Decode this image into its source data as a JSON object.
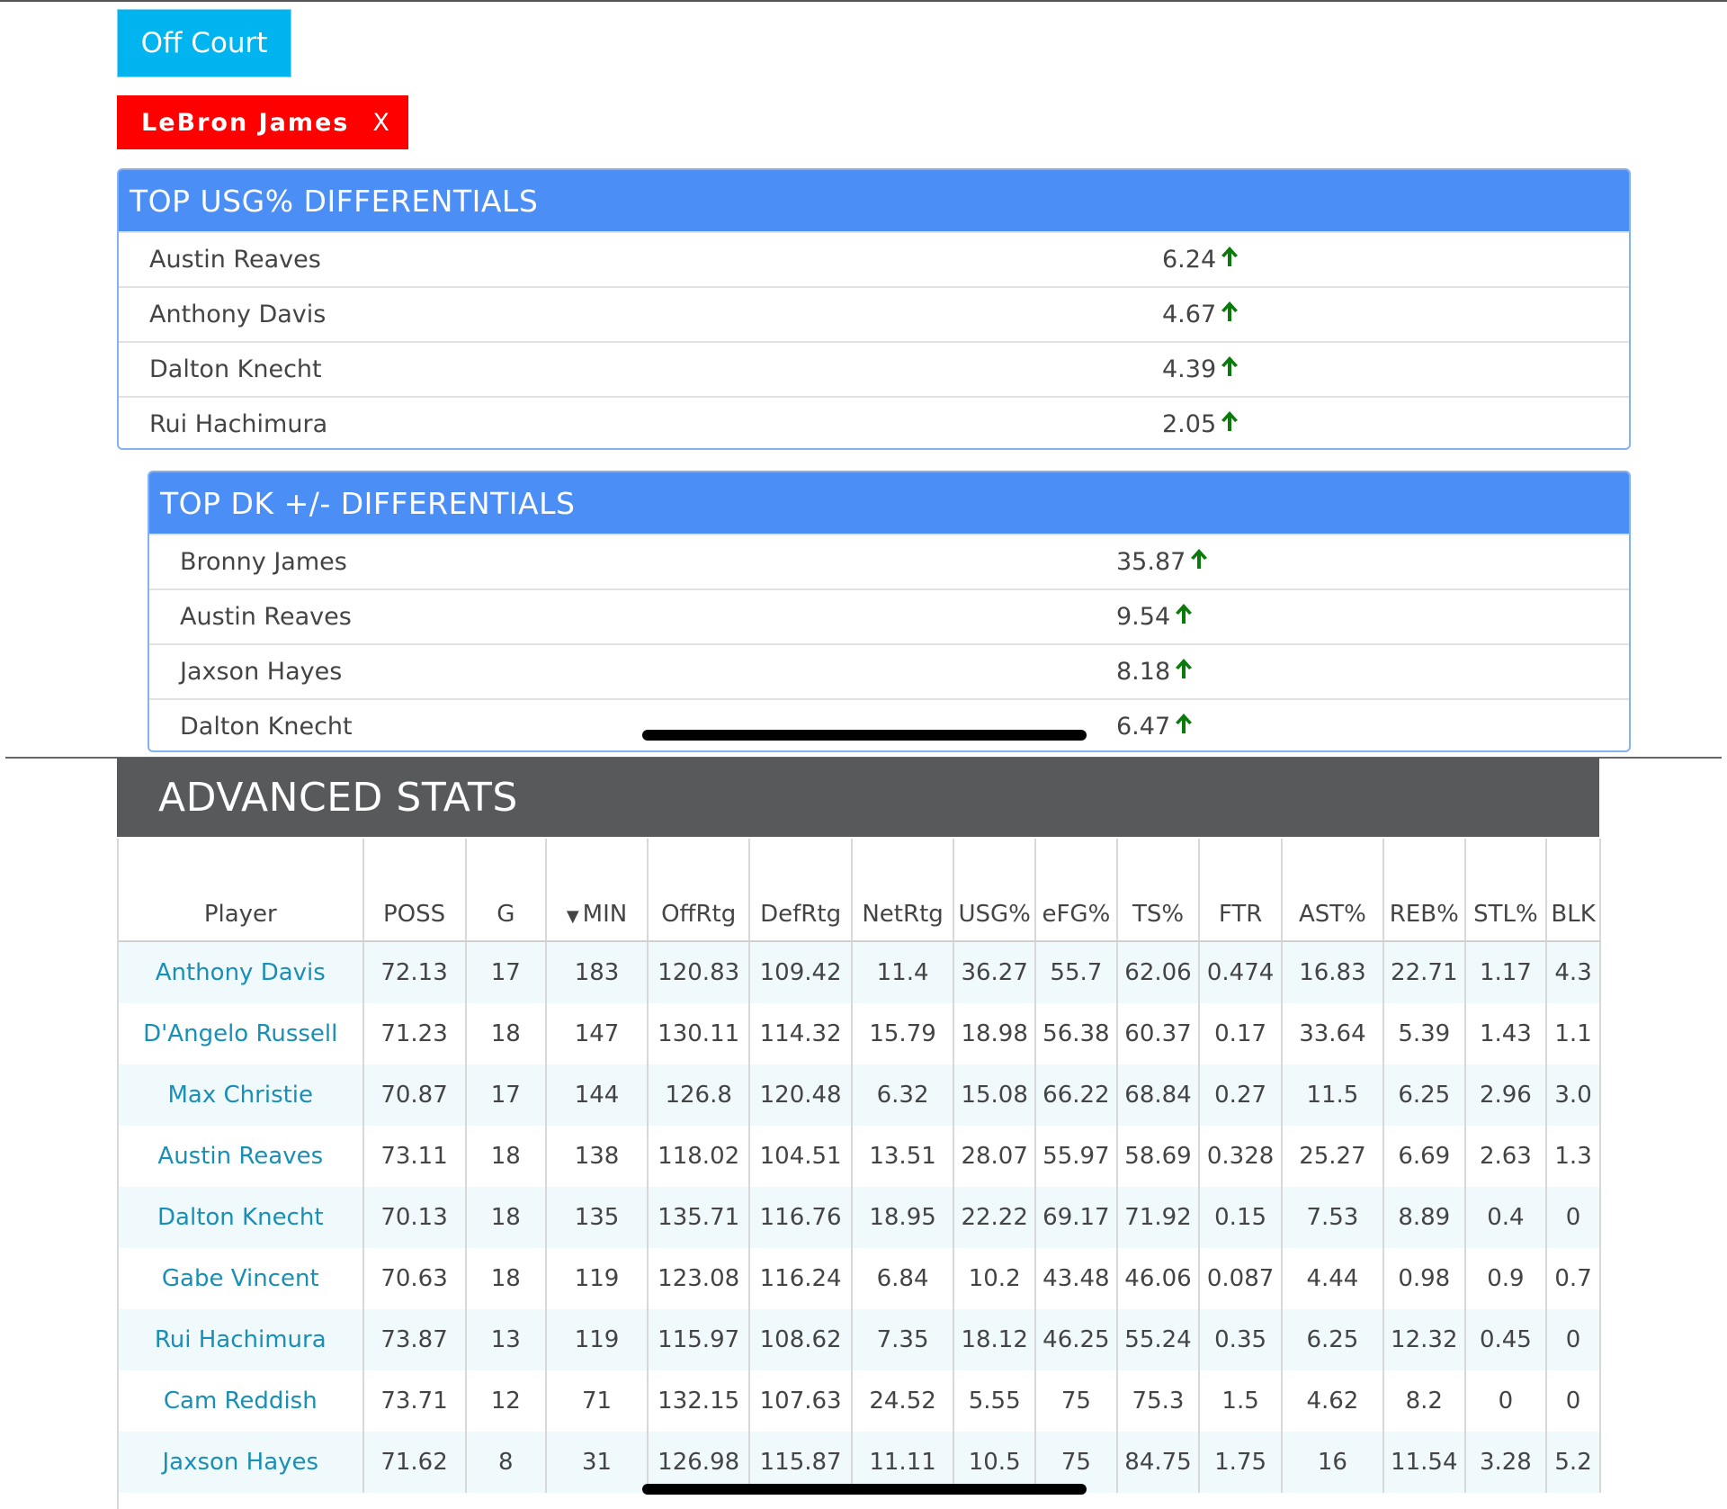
{
  "controls": {
    "off_court_label": "Off Court",
    "player_filter_name": "LeBron James",
    "player_filter_remove": "X"
  },
  "usg_card": {
    "title": "TOP USG% DIFFERENTIALS",
    "rows": [
      {
        "name": "Austin Reaves",
        "value": "6.24"
      },
      {
        "name": "Anthony Davis",
        "value": "4.67"
      },
      {
        "name": "Dalton Knecht",
        "value": "4.39"
      },
      {
        "name": "Rui Hachimura",
        "value": "2.05"
      }
    ]
  },
  "dk_card": {
    "title": "TOP DK +/- DIFFERENTIALS",
    "rows": [
      {
        "name": "Bronny James",
        "value": "35.87"
      },
      {
        "name": "Austin Reaves",
        "value": "9.54"
      },
      {
        "name": "Jaxson Hayes",
        "value": "8.18"
      },
      {
        "name": "Dalton Knecht",
        "value": "6.47"
      }
    ]
  },
  "arrow_icon": "arrow-up-icon",
  "arrow_color": "#0a7a0a",
  "advanced": {
    "title": "ADVANCED STATS",
    "sort_indicator": "▼",
    "columns": [
      "Player",
      "POSS",
      "G",
      "MIN",
      "OffRtg",
      "DefRtg",
      "NetRtg",
      "USG%",
      "eFG%",
      "TS%",
      "FTR",
      "AST%",
      "REB%",
      "STL%",
      "BLK"
    ],
    "rows": [
      [
        "Anthony Davis",
        "72.13",
        "17",
        "183",
        "120.83",
        "109.42",
        "11.4",
        "36.27",
        "55.7",
        "62.06",
        "0.474",
        "16.83",
        "22.71",
        "1.17",
        "4.3"
      ],
      [
        "D'Angelo Russell",
        "71.23",
        "18",
        "147",
        "130.11",
        "114.32",
        "15.79",
        "18.98",
        "56.38",
        "60.37",
        "0.17",
        "33.64",
        "5.39",
        "1.43",
        "1.1"
      ],
      [
        "Max Christie",
        "70.87",
        "17",
        "144",
        "126.8",
        "120.48",
        "6.32",
        "15.08",
        "66.22",
        "68.84",
        "0.27",
        "11.5",
        "6.25",
        "2.96",
        "3.0"
      ],
      [
        "Austin Reaves",
        "73.11",
        "18",
        "138",
        "118.02",
        "104.51",
        "13.51",
        "28.07",
        "55.97",
        "58.69",
        "0.328",
        "25.27",
        "6.69",
        "2.63",
        "1.3"
      ],
      [
        "Dalton Knecht",
        "70.13",
        "18",
        "135",
        "135.71",
        "116.76",
        "18.95",
        "22.22",
        "69.17",
        "71.92",
        "0.15",
        "7.53",
        "8.89",
        "0.4",
        "0"
      ],
      [
        "Gabe Vincent",
        "70.63",
        "18",
        "119",
        "123.08",
        "116.24",
        "6.84",
        "10.2",
        "43.48",
        "46.06",
        "0.087",
        "4.44",
        "0.98",
        "0.9",
        "0.7"
      ],
      [
        "Rui Hachimura",
        "73.87",
        "13",
        "119",
        "115.97",
        "108.62",
        "7.35",
        "18.12",
        "46.25",
        "55.24",
        "0.35",
        "6.25",
        "12.32",
        "0.45",
        "0"
      ],
      [
        "Cam Reddish",
        "73.71",
        "12",
        "71",
        "132.15",
        "107.63",
        "24.52",
        "5.55",
        "75",
        "75.3",
        "1.5",
        "4.62",
        "8.2",
        "0",
        "0"
      ],
      [
        "Jaxson Hayes",
        "71.62",
        "8",
        "31",
        "126.98",
        "115.87",
        "11.11",
        "10.5",
        "75",
        "84.75",
        "1.75",
        "16",
        "11.54",
        "3.28",
        "5.2"
      ]
    ]
  }
}
